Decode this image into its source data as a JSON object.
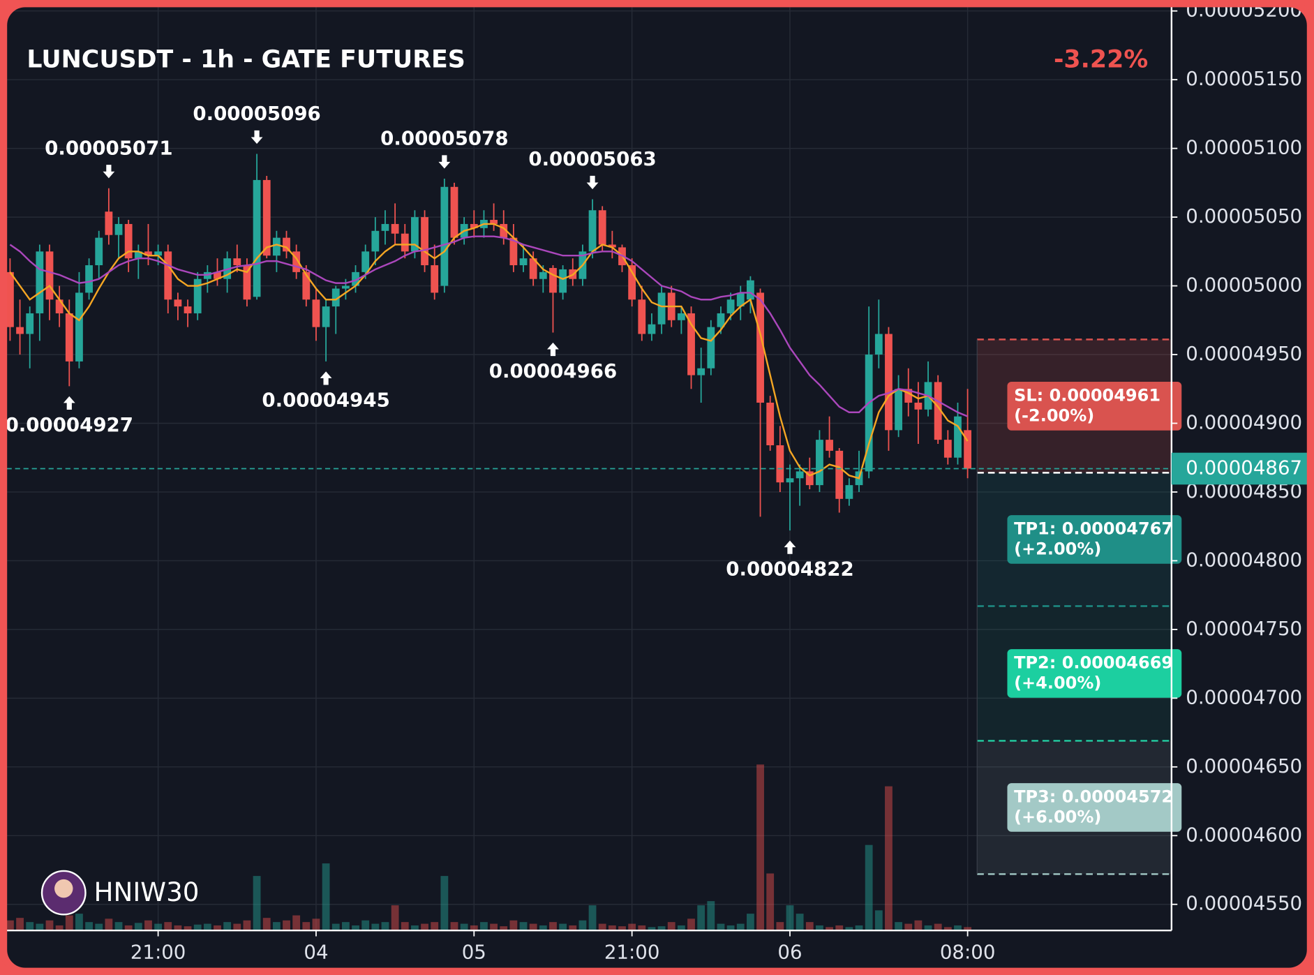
{
  "chart_data": {
    "type": "candlestick",
    "title": "LUNCUSDT - 1h - GATE FUTURES",
    "change": "-3.22%",
    "watermark": "HNIW30",
    "categories": [
      null,
      null,
      null,
      null,
      null,
      null,
      null,
      null,
      null,
      null,
      null,
      null,
      null,
      null,
      null,
      "21:00",
      null,
      null,
      null,
      null,
      null,
      null,
      null,
      null,
      null,
      null,
      null,
      null,
      null,
      null,
      null,
      "04",
      null,
      null,
      null,
      null,
      null,
      null,
      null,
      null,
      null,
      null,
      null,
      null,
      null,
      null,
      null,
      "05",
      null,
      null,
      null,
      null,
      null,
      null,
      null,
      null,
      null,
      null,
      null,
      null,
      null,
      null,
      null,
      "21:00",
      null,
      null,
      null,
      null,
      null,
      null,
      null,
      null,
      null,
      null,
      null,
      null,
      null,
      null,
      null,
      "06",
      null,
      null,
      null,
      null,
      null,
      null,
      null,
      null,
      null,
      null,
      null,
      null,
      null,
      null,
      null,
      null,
      null,
      "08:00"
    ],
    "open": [
      5.01e-05,
      4.97e-05,
      4.965e-05,
      4.98e-05,
      5.025e-05,
      4.99e-05,
      4.98e-05,
      4.945e-05,
      4.995e-05,
      5.015e-05,
      5.054e-05,
      5.037e-05,
      5.045e-05,
      5.02e-05,
      5.025e-05,
      5.022e-05,
      5.025e-05,
      4.99e-05,
      4.985e-05,
      4.98e-05,
      5.005e-05,
      5.01e-05,
      5.005e-05,
      5.02e-05,
      5.015e-05,
      4.992e-05,
      5.077e-05,
      5.022e-05,
      5.035e-05,
      5.025e-05,
      5.01e-05,
      4.99e-05,
      4.97e-05,
      4.985e-05,
      4.998e-05,
      5e-05,
      5.01e-05,
      5.025e-05,
      5.04e-05,
      5.045e-05,
      5.038e-05,
      5.025e-05,
      5.05e-05,
      5.015e-05,
      5e-05,
      5.072e-05,
      5.035e-05,
      5.045e-05,
      5.042e-05,
      5.048e-05,
      5.045e-05,
      5.035e-05,
      5.015e-05,
      5.02e-05,
      5.005e-05,
      5.013e-05,
      4.995e-05,
      5.012e-05,
      5.005e-05,
      5.025e-05,
      5.055e-05,
      5.03e-05,
      5.028e-05,
      5.015e-05,
      4.99e-05,
      4.965e-05,
      4.972e-05,
      4.995e-05,
      4.975e-05,
      4.98e-05,
      4.935e-05,
      4.94e-05,
      4.97e-05,
      4.98e-05,
      4.985e-05,
      4.99e-05,
      4.995e-05,
      4.915e-05,
      4.884e-05,
      4.857e-05,
      4.86e-05,
      4.865e-05,
      4.855e-05,
      4.888e-05,
      4.88e-05,
      4.845e-05,
      4.855e-05,
      4.865e-05,
      4.95e-05,
      4.965e-05,
      4.895e-05,
      4.925e-05,
      4.915e-05,
      4.91e-05,
      4.93e-05,
      4.888e-05,
      4.875e-05,
      4.895e-05
    ],
    "high": [
      5.02e-05,
      4.99e-05,
      4.985e-05,
      5.03e-05,
      5.03e-05,
      5e-05,
      4.99e-05,
      5.01e-05,
      5.02e-05,
      5.04e-05,
      5.071e-05,
      5.05e-05,
      5.048e-05,
      5.03e-05,
      5.045e-05,
      5.03e-05,
      5.03e-05,
      4.995e-05,
      4.99e-05,
      5.01e-05,
      5.015e-05,
      5.02e-05,
      5.025e-05,
      5.03e-05,
      5.02e-05,
      5.096e-05,
      5.08e-05,
      5.04e-05,
      5.04e-05,
      5.03e-05,
      5.015e-05,
      4.998e-05,
      4.99e-05,
      5e-05,
      5.005e-05,
      5.015e-05,
      5.03e-05,
      5.05e-05,
      5.055e-05,
      5.06e-05,
      5.045e-05,
      5.055e-05,
      5.055e-05,
      5.03e-05,
      5.078e-05,
      5.075e-05,
      5.05e-05,
      5.055e-05,
      5.055e-05,
      5.06e-05,
      5.055e-05,
      5.045e-05,
      5.03e-05,
      5.025e-05,
      5.015e-05,
      5.015e-05,
      5.015e-05,
      5.02e-05,
      5.03e-05,
      5.063e-05,
      5.058e-05,
      5.04e-05,
      5.03e-05,
      5.02e-05,
      5e-05,
      4.98e-05,
      5e-05,
      5e-05,
      4.985e-05,
      4.985e-05,
      4.955e-05,
      4.975e-05,
      4.985e-05,
      4.995e-05,
      5e-05,
      5.007e-05,
      4.998e-05,
      4.92e-05,
      4.898e-05,
      4.87e-05,
      4.87e-05,
      4.875e-05,
      4.895e-05,
      4.905e-05,
      4.882e-05,
      4.86e-05,
      4.88e-05,
      4.985e-05,
      4.99e-05,
      4.97e-05,
      4.935e-05,
      4.94e-05,
      4.93e-05,
      4.945e-05,
      4.935e-05,
      4.895e-05,
      4.915e-05,
      4.925e-05
    ],
    "low": [
      4.96e-05,
      4.95e-05,
      4.94e-05,
      4.96e-05,
      4.975e-05,
      4.97e-05,
      4.927e-05,
      4.94e-05,
      4.99e-05,
      5.005e-05,
      5.03e-05,
      5.02e-05,
      5.01e-05,
      5.005e-05,
      5.015e-05,
      5.015e-05,
      4.98e-05,
      4.975e-05,
      4.97e-05,
      4.975e-05,
      4.995e-05,
      5e-05,
      4.995e-05,
      5.01e-05,
      4.985e-05,
      4.99e-05,
      5.02e-05,
      5.01e-05,
      5.02e-05,
      5.005e-05,
      4.985e-05,
      4.96e-05,
      4.945e-05,
      4.965e-05,
      4.99e-05,
      4.995e-05,
      5.005e-05,
      5.015e-05,
      5.03e-05,
      5.03e-05,
      5.02e-05,
      5.02e-05,
      5.01e-05,
      4.99e-05,
      4.995e-05,
      5.03e-05,
      5.03e-05,
      5.035e-05,
      5.035e-05,
      5.04e-05,
      5.03e-05,
      5.01e-05,
      5.01e-05,
      5e-05,
      4.995e-05,
      4.966e-05,
      4.99e-05,
      5e-05,
      5e-05,
      5.02e-05,
      5.025e-05,
      5.02e-05,
      5.01e-05,
      4.985e-05,
      4.96e-05,
      4.96e-05,
      4.965e-05,
      4.97e-05,
      4.965e-05,
      4.925e-05,
      4.915e-05,
      4.935e-05,
      4.965e-05,
      4.975e-05,
      4.975e-05,
      4.98e-05,
      4.832e-05,
      4.88e-05,
      4.85e-05,
      4.822e-05,
      4.84e-05,
      4.852e-05,
      4.85e-05,
      4.875e-05,
      4.835e-05,
      4.84e-05,
      4.85e-05,
      4.86e-05,
      4.94e-05,
      4.88e-05,
      4.89e-05,
      4.905e-05,
      4.885e-05,
      4.905e-05,
      4.885e-05,
      4.87e-05,
      4.87e-05,
      4.86e-05
    ],
    "close": [
      4.97e-05,
      4.965e-05,
      4.98e-05,
      5.025e-05,
      4.99e-05,
      4.98e-05,
      4.945e-05,
      4.995e-05,
      5.015e-05,
      5.035e-05,
      5.037e-05,
      5.045e-05,
      5.02e-05,
      5.025e-05,
      5.022e-05,
      5.025e-05,
      4.99e-05,
      4.985e-05,
      4.98e-05,
      5.005e-05,
      5.01e-05,
      5.005e-05,
      5.02e-05,
      5.015e-05,
      4.99e-05,
      5.077e-05,
      5.022e-05,
      5.035e-05,
      5.025e-05,
      5.01e-05,
      4.99e-05,
      4.97e-05,
      4.985e-05,
      4.998e-05,
      5e-05,
      5.01e-05,
      5.025e-05,
      5.04e-05,
      5.045e-05,
      5.038e-05,
      5.025e-05,
      5.05e-05,
      5.015e-05,
      4.995e-05,
      5.072e-05,
      5.035e-05,
      5.045e-05,
      5.042e-05,
      5.048e-05,
      5.045e-05,
      5.035e-05,
      5.015e-05,
      5.02e-05,
      5.005e-05,
      5.01e-05,
      4.995e-05,
      5.012e-05,
      5.005e-05,
      5.025e-05,
      5.055e-05,
      5.03e-05,
      5.028e-05,
      5.015e-05,
      4.99e-05,
      4.965e-05,
      4.972e-05,
      4.995e-05,
      4.975e-05,
      4.98e-05,
      4.935e-05,
      4.94e-05,
      4.97e-05,
      4.98e-05,
      4.99e-05,
      4.995e-05,
      5.004e-05,
      4.915e-05,
      4.884e-05,
      4.857e-05,
      4.86e-05,
      4.865e-05,
      4.855e-05,
      4.888e-05,
      4.88e-05,
      4.845e-05,
      4.855e-05,
      4.865e-05,
      4.95e-05,
      4.965e-05,
      4.895e-05,
      4.925e-05,
      4.915e-05,
      4.91e-05,
      4.93e-05,
      4.888e-05,
      4.875e-05,
      4.905e-05,
      4.867e-05
    ],
    "up_color": "#26a69a",
    "down_color": "#ef5350",
    "volume": [
      12,
      15,
      10,
      8,
      12,
      6,
      18,
      20,
      10,
      8,
      14,
      10,
      6,
      9,
      12,
      8,
      10,
      6,
      5,
      7,
      8,
      6,
      10,
      8,
      12,
      65,
      15,
      10,
      12,
      18,
      10,
      14,
      80,
      8,
      10,
      6,
      12,
      8,
      10,
      30,
      10,
      6,
      8,
      10,
      65,
      10,
      8,
      6,
      10,
      8,
      5,
      12,
      10,
      8,
      6,
      10,
      8,
      6,
      12,
      30,
      8,
      6,
      5,
      8,
      6,
      4,
      5,
      10,
      6,
      14,
      30,
      35,
      8,
      6,
      8,
      20,
      198,
      68,
      10,
      30,
      20,
      10,
      6,
      4,
      6,
      4,
      6,
      102,
      24,
      172,
      10,
      8,
      12,
      6,
      8,
      4,
      6,
      4
    ],
    "moving_averages": [
      {
        "color": "#f5a623",
        "values": [
          5.01e-05,
          5e-05,
          4.99e-05,
          4.995e-05,
          5e-05,
          4.99e-05,
          4.98e-05,
          4.975e-05,
          4.985e-05,
          4.998e-05,
          5.01e-05,
          5.02e-05,
          5.025e-05,
          5.025e-05,
          5.022e-05,
          5.022e-05,
          5.015e-05,
          5.005e-05,
          5e-05,
          5e-05,
          5.002e-05,
          5.005e-05,
          5.008e-05,
          5.012e-05,
          5.01e-05,
          5.02e-05,
          5.028e-05,
          5.03e-05,
          5.028e-05,
          5.02e-05,
          5.008e-05,
          4.998e-05,
          4.99e-05,
          4.99e-05,
          4.995e-05,
          5e-05,
          5.008e-05,
          5.018e-05,
          5.025e-05,
          5.03e-05,
          5.03e-05,
          5.03e-05,
          5.025e-05,
          5.02e-05,
          5.025e-05,
          5.035e-05,
          5.04e-05,
          5.042e-05,
          5.045e-05,
          5.045e-05,
          5.042e-05,
          5.035e-05,
          5.028e-05,
          5.02e-05,
          5.012e-05,
          5.008e-05,
          5.005e-05,
          5.008e-05,
          5.015e-05,
          5.025e-05,
          5.03e-05,
          5.028e-05,
          5.022e-05,
          5.01e-05,
          4.998e-05,
          4.988e-05,
          4.985e-05,
          4.985e-05,
          4.985e-05,
          4.972e-05,
          4.962e-05,
          4.96e-05,
          4.968e-05,
          4.978e-05,
          4.985e-05,
          4.99e-05,
          4.965e-05,
          4.935e-05,
          4.905e-05,
          4.88e-05,
          4.868e-05,
          4.862e-05,
          4.865e-05,
          4.87e-05,
          4.868e-05,
          4.862e-05,
          4.86e-05,
          4.885e-05,
          4.908e-05,
          4.92e-05,
          4.925e-05,
          4.922e-05,
          4.918e-05,
          4.92e-05,
          4.912e-05,
          4.902e-05,
          4.898e-05,
          4.887e-05
        ]
      },
      {
        "color": "#ab47bc",
        "values": [
          5.03e-05,
          5.025e-05,
          5.018e-05,
          5.012e-05,
          5.01e-05,
          5.008e-05,
          5.005e-05,
          5.002e-05,
          5.003e-05,
          5.005e-05,
          5.01e-05,
          5.015e-05,
          5.018e-05,
          5.02e-05,
          5.02e-05,
          5.018e-05,
          5.015e-05,
          5.012e-05,
          5.01e-05,
          5.008e-05,
          5.008e-05,
          5.01e-05,
          5.012e-05,
          5.014e-05,
          5.015e-05,
          5.016e-05,
          5.018e-05,
          5.018e-05,
          5.016e-05,
          5.014e-05,
          5.012e-05,
          5.008e-05,
          5.004e-05,
          5.002e-05,
          5.002e-05,
          5.004e-05,
          5.008e-05,
          5.012e-05,
          5.015e-05,
          5.018e-05,
          5.022e-05,
          5.025e-05,
          5.026e-05,
          5.028e-05,
          5.03e-05,
          5.032e-05,
          5.035e-05,
          5.036e-05,
          5.036e-05,
          5.036e-05,
          5.035e-05,
          5.033e-05,
          5.03e-05,
          5.028e-05,
          5.026e-05,
          5.024e-05,
          5.022e-05,
          5.022e-05,
          5.022e-05,
          5.024e-05,
          5.025e-05,
          5.025e-05,
          5.022e-05,
          5.018e-05,
          5.012e-05,
          5.006e-05,
          5e-05,
          4.998e-05,
          4.996e-05,
          4.992e-05,
          4.99e-05,
          4.99e-05,
          4.992e-05,
          4.993e-05,
          4.995e-05,
          4.995e-05,
          4.99e-05,
          4.98e-05,
          4.968e-05,
          4.955e-05,
          4.945e-05,
          4.935e-05,
          4.928e-05,
          4.92e-05,
          4.912e-05,
          4.908e-05,
          4.908e-05,
          4.915e-05,
          4.92e-05,
          4.922e-05,
          4.925e-05,
          4.924e-05,
          4.922e-05,
          4.92e-05,
          4.916e-05,
          4.912e-05,
          4.908e-05,
          4.905e-05
        ]
      }
    ],
    "ylim": [
      4.531e-05,
      5.203e-05
    ],
    "yticks": [
      {
        "value": 4.55e-05,
        "label": "0.00004550"
      },
      {
        "value": 4.6e-05,
        "label": "0.00004600"
      },
      {
        "value": 4.65e-05,
        "label": "0.00004650"
      },
      {
        "value": 4.7e-05,
        "label": "0.00004700"
      },
      {
        "value": 4.75e-05,
        "label": "0.00004750"
      },
      {
        "value": 4.8e-05,
        "label": "0.00004800"
      },
      {
        "value": 4.85e-05,
        "label": "0.00004850"
      },
      {
        "value": 4.9e-05,
        "label": "0.00004900"
      },
      {
        "value": 4.95e-05,
        "label": "0.00004950"
      },
      {
        "value": 5e-05,
        "label": "0.00005000"
      },
      {
        "value": 5.05e-05,
        "label": "0.00005050"
      },
      {
        "value": 5.1e-05,
        "label": "0.00005100"
      },
      {
        "value": 5.15e-05,
        "label": "0.00005150"
      },
      {
        "value": 5.2e-05,
        "label": "0.00005200"
      }
    ],
    "grid": true,
    "high_labels": [
      5.071e-05,
      5.096e-05,
      5.078e-05,
      5.063e-05
    ],
    "low_labels": [
      4.927e-05,
      4.945e-05,
      4.966e-05,
      4.822e-05
    ],
    "entry_price": 4.864e-05,
    "levels": [
      {
        "price": 4.961e-05,
        "label": "SL: 0.00004961",
        "change": "(-2.00%)",
        "color": "#d9534f"
      },
      {
        "price": 4.767e-05,
        "label": "TP1: 0.00004767",
        "change": "(+2.00%)",
        "color": "#1f8f87"
      },
      {
        "price": 4.669e-05,
        "label": "TP2: 0.00004669",
        "change": "(+4.00%)",
        "color": "#1ccfa0"
      },
      {
        "price": 4.572e-05,
        "label": "TP3: 0.00004572",
        "change": "(+6.00%)",
        "color": "#a3c9c6"
      }
    ]
  }
}
